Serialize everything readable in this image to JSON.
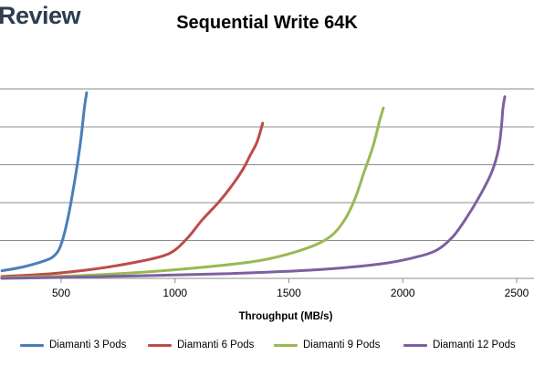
{
  "brand": {
    "text": "Review"
  },
  "chart_data": {
    "type": "line",
    "title": "Sequential Write 64K",
    "xlabel": "Throughput (MB/s)",
    "ylabel": "",
    "xlim": [
      250,
      2600
    ],
    "ylim": [
      0,
      10
    ],
    "x_ticks": [
      500,
      1000,
      1500,
      2000,
      2500
    ],
    "y_gridlines": [
      1,
      2,
      3,
      4,
      5
    ],
    "grid": true,
    "legend_position": "bottom",
    "series": [
      {
        "name": "Diamanti 3 Pods",
        "color": "#4a7ebb",
        "points": [
          [
            240,
            0.2
          ],
          [
            330,
            0.3
          ],
          [
            420,
            0.45
          ],
          [
            470,
            0.6
          ],
          [
            500,
            0.9
          ],
          [
            530,
            1.6
          ],
          [
            560,
            2.6
          ],
          [
            585,
            3.6
          ],
          [
            602,
            4.5
          ],
          [
            612,
            4.9
          ]
        ]
      },
      {
        "name": "Diamanti 6 Pods",
        "color": "#be4b48",
        "points": [
          [
            240,
            0.05
          ],
          [
            450,
            0.12
          ],
          [
            650,
            0.25
          ],
          [
            820,
            0.42
          ],
          [
            940,
            0.58
          ],
          [
            1000,
            0.75
          ],
          [
            1060,
            1.1
          ],
          [
            1120,
            1.55
          ],
          [
            1190,
            2.0
          ],
          [
            1250,
            2.45
          ],
          [
            1300,
            2.9
          ],
          [
            1330,
            3.25
          ],
          [
            1360,
            3.6
          ],
          [
            1385,
            4.1
          ]
        ]
      },
      {
        "name": "Diamanti 9 Pods",
        "color": "#98b954",
        "points": [
          [
            240,
            0.02
          ],
          [
            600,
            0.08
          ],
          [
            900,
            0.18
          ],
          [
            1200,
            0.34
          ],
          [
            1380,
            0.48
          ],
          [
            1530,
            0.7
          ],
          [
            1640,
            0.95
          ],
          [
            1700,
            1.2
          ],
          [
            1750,
            1.6
          ],
          [
            1790,
            2.1
          ],
          [
            1830,
            2.8
          ],
          [
            1870,
            3.5
          ],
          [
            1900,
            4.2
          ],
          [
            1915,
            4.5
          ]
        ]
      },
      {
        "name": "Diamanti 12 Pods",
        "color": "#7d60a0",
        "points": [
          [
            240,
            0.0
          ],
          [
            700,
            0.05
          ],
          [
            1200,
            0.12
          ],
          [
            1600,
            0.22
          ],
          [
            1900,
            0.38
          ],
          [
            2050,
            0.55
          ],
          [
            2150,
            0.75
          ],
          [
            2220,
            1.1
          ],
          [
            2280,
            1.6
          ],
          [
            2340,
            2.2
          ],
          [
            2390,
            2.8
          ],
          [
            2420,
            3.4
          ],
          [
            2433,
            4.0
          ],
          [
            2440,
            4.5
          ],
          [
            2448,
            4.8
          ]
        ]
      }
    ]
  }
}
